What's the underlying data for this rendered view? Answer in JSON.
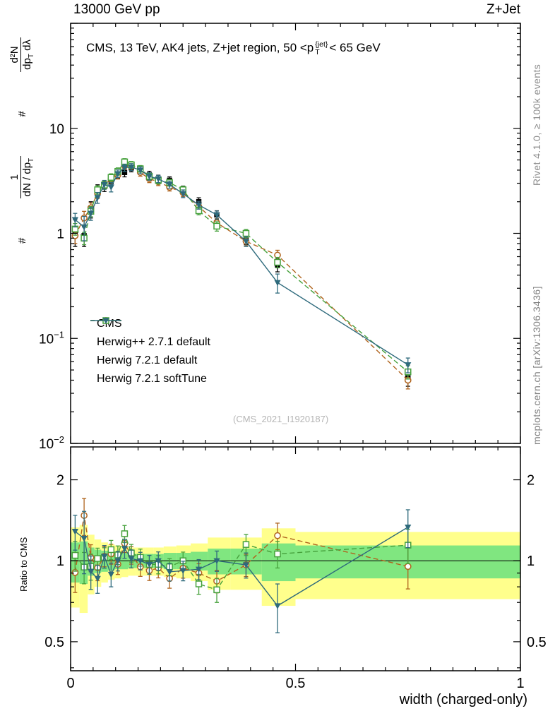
{
  "header": {
    "left": "13000 GeV pp",
    "right": "Z+Jet"
  },
  "panel_title": {
    "pre": "CMS, 13 TeV, AK4 jets, Z+jet region, 50 <p",
    "sup": "{jet}",
    "sub": "T",
    "post": "< 65 GeV"
  },
  "ylabel": {
    "hash1": "#",
    "frac1_num": "1",
    "frac1_den_main": "dN / dp",
    "frac1_den_sub": "T",
    "hash2": "#",
    "frac2_num": "d²N",
    "frac2_den_main": "dp",
    "frac2_den_sub": "T",
    "frac2_den_tail": " dλ"
  },
  "side_notes": {
    "top_right": "Rivet 4.1.0, ≥ 100k events",
    "bottom_right": "mcplots.cern.ch [arXiv:1306.3436]"
  },
  "watermark": "(CMS_2021_I1920187)",
  "ratio_ylabel": "Ratio to CMS",
  "xlabel": "width (charged-only)",
  "chart_data": {
    "type": "scatter",
    "title": "CMS, 13 TeV, AK4 jets, Z+jet region, 50 <p_T^{jet} < 65 GeV",
    "xlabel": "width (charged-only)",
    "ylabel": "# 1/(dN/dp_T) # d²N/(dp_T dλ)",
    "legend_position": "inside-middle-left",
    "x": [
      0.01,
      0.03,
      0.045,
      0.06,
      0.075,
      0.09,
      0.105,
      0.12,
      0.135,
      0.155,
      0.175,
      0.195,
      0.22,
      0.25,
      0.285,
      0.325,
      0.39,
      0.46,
      0.75
    ],
    "bin_edges": [
      0,
      0.02,
      0.038,
      0.053,
      0.068,
      0.083,
      0.098,
      0.113,
      0.128,
      0.145,
      0.165,
      0.185,
      0.207,
      0.235,
      0.267,
      0.305,
      0.355,
      0.425,
      0.5,
      1.0
    ],
    "series": [
      {
        "label": "CMS",
        "color": "#000000",
        "marker": "square-filled",
        "line": "none",
        "is_reference": true,
        "values": [
          1.05,
          0.95,
          1.7,
          2.55,
          2.8,
          3.1,
          3.7,
          3.8,
          4.2,
          4.0,
          3.6,
          3.3,
          3.2,
          2.6,
          2.0,
          1.5,
          0.87,
          0.5,
          0.042
        ],
        "yerr": [
          0.3,
          0.2,
          0.3,
          0.35,
          0.3,
          0.3,
          0.35,
          0.35,
          0.35,
          0.3,
          0.3,
          0.28,
          0.25,
          0.22,
          0.18,
          0.14,
          0.09,
          0.07,
          0.007
        ]
      },
      {
        "label": "Herwig++ 2.7.1 default",
        "color": "#b0641e",
        "marker": "circle-open",
        "line": "dashed",
        "is_reference": false,
        "values": [
          0.95,
          1.4,
          1.75,
          2.4,
          2.91,
          3.29,
          3.59,
          4.41,
          4.41,
          3.8,
          3.31,
          3.1,
          2.75,
          2.44,
          1.8,
          1.26,
          0.84,
          0.62,
          0.04
        ],
        "yerr": [
          0.15,
          0.22,
          0.2,
          0.25,
          0.25,
          0.28,
          0.3,
          0.33,
          0.33,
          0.3,
          0.27,
          0.25,
          0.22,
          0.2,
          0.15,
          0.12,
          0.08,
          0.07,
          0.007
        ]
      },
      {
        "label": "Herwig 7.2.1 default",
        "color": "#46a13c",
        "marker": "square-open",
        "line": "dashed",
        "is_reference": false,
        "values": [
          1.1,
          0.9,
          1.62,
          2.6,
          2.88,
          3.41,
          3.89,
          4.79,
          4.49,
          4.12,
          3.49,
          3.2,
          3.04,
          2.6,
          1.64,
          1.17,
          1.0,
          0.53,
          0.048
        ],
        "yerr": [
          0.14,
          0.12,
          0.18,
          0.24,
          0.25,
          0.28,
          0.31,
          0.35,
          0.34,
          0.3,
          0.28,
          0.25,
          0.22,
          0.2,
          0.14,
          0.12,
          0.09,
          0.06,
          0.007
        ]
      },
      {
        "label": "Herwig 7.2.1 softTune",
        "color": "#2e6a7c",
        "marker": "triangle-down-filled",
        "line": "solid",
        "is_reference": false,
        "values": [
          1.35,
          1.15,
          1.55,
          2.19,
          2.91,
          2.76,
          3.7,
          4.22,
          4.28,
          4.0,
          3.49,
          3.3,
          2.91,
          2.39,
          1.86,
          1.5,
          0.84,
          0.34,
          0.056
        ],
        "yerr": [
          0.2,
          0.3,
          0.22,
          0.26,
          0.28,
          0.28,
          0.31,
          0.34,
          0.33,
          0.3,
          0.28,
          0.26,
          0.22,
          0.2,
          0.16,
          0.13,
          0.09,
          0.07,
          0.009
        ]
      }
    ],
    "ratio": {
      "reference": "CMS",
      "bands": {
        "yellow_color": "#ffff8c",
        "green_color": "#80e680",
        "yellow": [
          0.33,
          0.36,
          0.25,
          0.2,
          0.17,
          0.15,
          0.14,
          0.13,
          0.12,
          0.12,
          0.12,
          0.12,
          0.13,
          0.14,
          0.16,
          0.22,
          0.22,
          0.32,
          0.28
        ],
        "green": [
          0.17,
          0.18,
          0.12,
          0.1,
          0.09,
          0.08,
          0.07,
          0.07,
          0.06,
          0.06,
          0.06,
          0.06,
          0.07,
          0.07,
          0.08,
          0.11,
          0.11,
          0.16,
          0.14
        ]
      }
    },
    "axes": {
      "x": {
        "min": 0,
        "max": 1,
        "minor_step": 0.05,
        "ticks": [
          {
            "v": 0,
            "label": "0"
          },
          {
            "v": 0.5,
            "label": "0.5"
          },
          {
            "v": 1,
            "label": "1"
          }
        ]
      },
      "y_main": {
        "scale": "log",
        "min": 0.01,
        "max": 100,
        "ticks": [
          {
            "v": 10,
            "base": "10"
          },
          {
            "v": 1,
            "base": "1"
          },
          {
            "v": 0.1,
            "base": "10",
            "exp": "−1"
          },
          {
            "v": 0.01,
            "base": "10",
            "exp": "−2"
          }
        ]
      },
      "y_ratio": {
        "scale": "log",
        "min": 0.39,
        "max": 2.65,
        "ticks": [
          {
            "v": 2,
            "label": "2"
          },
          {
            "v": 1,
            "label": "1"
          },
          {
            "v": 0.5,
            "label": "0.5"
          }
        ],
        "minor": [
          0.4,
          0.6,
          0.7,
          0.8,
          0.9
        ]
      }
    }
  }
}
